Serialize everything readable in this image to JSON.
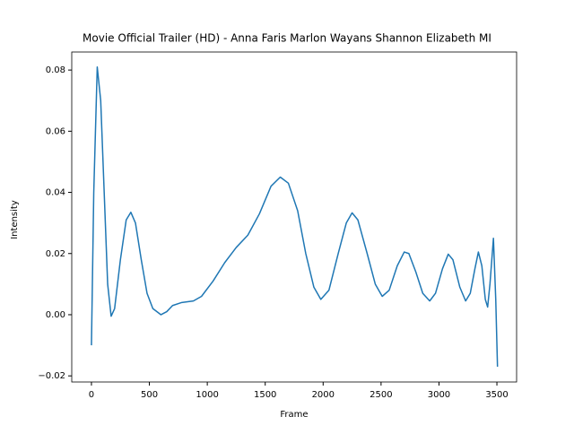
{
  "chart_data": {
    "type": "line",
    "title": "Movie  Official Trailer (HD) - Anna Faris Marlon Wayans Shannon Elizabeth  MI",
    "xlabel": "Frame",
    "ylabel": "Intensity",
    "x": [
      0,
      20,
      50,
      80,
      110,
      140,
      170,
      200,
      250,
      300,
      340,
      380,
      430,
      480,
      530,
      600,
      650,
      700,
      780,
      880,
      950,
      1050,
      1150,
      1250,
      1350,
      1450,
      1550,
      1630,
      1700,
      1780,
      1850,
      1920,
      1980,
      2050,
      2130,
      2200,
      2250,
      2300,
      2380,
      2450,
      2510,
      2570,
      2640,
      2700,
      2740,
      2800,
      2860,
      2920,
      2970,
      3030,
      3080,
      3120,
      3180,
      3230,
      3270,
      3310,
      3340,
      3370,
      3400,
      3420,
      3440,
      3470,
      3490,
      3505
    ],
    "series": [
      {
        "name": "Intensity",
        "color": "#1f77b4",
        "values": [
          -0.01,
          0.04,
          0.081,
          0.07,
          0.04,
          0.01,
          -0.0005,
          0.002,
          0.018,
          0.031,
          0.0335,
          0.03,
          0.018,
          0.007,
          0.002,
          0.0,
          0.001,
          0.003,
          0.004,
          0.0045,
          0.006,
          0.011,
          0.017,
          0.022,
          0.026,
          0.033,
          0.042,
          0.045,
          0.043,
          0.034,
          0.02,
          0.009,
          0.005,
          0.008,
          0.02,
          0.03,
          0.0333,
          0.031,
          0.02,
          0.01,
          0.006,
          0.008,
          0.016,
          0.0205,
          0.02,
          0.014,
          0.007,
          0.0045,
          0.007,
          0.015,
          0.0198,
          0.018,
          0.009,
          0.0045,
          0.007,
          0.015,
          0.0205,
          0.016,
          0.005,
          0.0025,
          0.01,
          0.025,
          0.005,
          -0.017
        ]
      }
    ],
    "xlim": [
      -170,
      3670
    ],
    "ylim": [
      -0.022,
      0.0859
    ],
    "xticks": [
      0,
      500,
      1000,
      1500,
      2000,
      2500,
      3000,
      3500
    ],
    "yticks": [
      {
        "value": -0.02,
        "label": "−0.02"
      },
      {
        "value": 0,
        "label": "0.00"
      },
      0.02,
      0.04,
      0.06,
      0.08
    ]
  }
}
